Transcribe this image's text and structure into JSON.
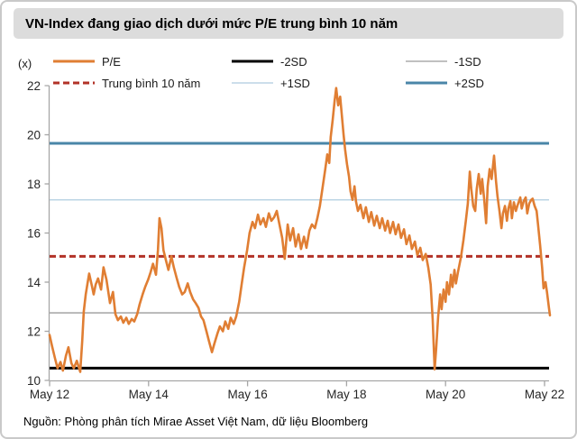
{
  "header": {
    "title": "VN-Index đang giao dịch dưới mức P/E trung bình 10 năm"
  },
  "legend": {
    "items": [
      {
        "key": "pe",
        "label": "P/E",
        "color": "#E07E33",
        "width": 3,
        "dashed": false,
        "col": 0,
        "row": 0
      },
      {
        "key": "minus-2sd",
        "label": "-2SD",
        "color": "#000000",
        "width": 3,
        "dashed": false,
        "col": 1,
        "row": 0
      },
      {
        "key": "minus-1sd",
        "label": "-1SD",
        "color": "#9B9B9B",
        "width": 1.3,
        "dashed": false,
        "col": 2,
        "row": 0
      },
      {
        "key": "mean-10y",
        "label": "Trung bình 10 năm",
        "color": "#B23227",
        "width": 3,
        "dashed": true,
        "col": 0,
        "row": 1
      },
      {
        "key": "plus-1sd",
        "label": "+1SD",
        "color": "#AECBDF",
        "width": 1.3,
        "dashed": false,
        "col": 1,
        "row": 1
      },
      {
        "key": "plus-2sd",
        "label": "+2SD",
        "color": "#4A86A8",
        "width": 3,
        "dashed": false,
        "col": 2,
        "row": 1
      }
    ]
  },
  "source": {
    "text": "Nguồn: Phòng phân tích Mirae Asset Việt Nam, dữ liệu Bloomberg"
  },
  "chart_data": {
    "type": "line",
    "title": "VN-Index đang giao dịch dưới mức P/E trung bình 10 năm",
    "unit_label": "(x)",
    "xlabel": "",
    "ylabel": "P/E (x)",
    "x_tick_labels": [
      "May 12",
      "May 14",
      "May 16",
      "May 18",
      "May 20",
      "May 22"
    ],
    "x_range_years_since_may_2012": [
      0,
      10.11
    ],
    "ylim": [
      10,
      22
    ],
    "y_ticks": [
      10,
      12,
      14,
      16,
      18,
      20,
      22
    ],
    "grid": false,
    "legend_position": "top",
    "axis_color": "#A6A6A6",
    "tick_label_color": "#262626",
    "reference_lines": [
      {
        "name": "-2SD",
        "value": 10.5,
        "color": "#000000",
        "width": 3,
        "dash": null
      },
      {
        "name": "-1SD",
        "value": 12.75,
        "color": "#9B9B9B",
        "width": 1.3,
        "dash": null
      },
      {
        "name": "Trung bình 10 năm",
        "value": 15.05,
        "color": "#B23227",
        "width": 3,
        "dash": "7,4"
      },
      {
        "name": "+1SD",
        "value": 17.35,
        "color": "#AECBDF",
        "width": 1.3,
        "dash": null
      },
      {
        "name": "+2SD",
        "value": 19.65,
        "color": "#4A86A8",
        "width": 3,
        "dash": null
      }
    ],
    "series": [
      {
        "name": "P/E",
        "color": "#E07E33",
        "width": 2.6,
        "points": [
          [
            0,
            11.85
          ],
          [
            0.05,
            11.4
          ],
          [
            0.11,
            10.9
          ],
          [
            0.16,
            10.5
          ],
          [
            0.22,
            10.75
          ],
          [
            0.27,
            10.4
          ],
          [
            0.33,
            11.0
          ],
          [
            0.38,
            11.35
          ],
          [
            0.44,
            10.7
          ],
          [
            0.49,
            10.5
          ],
          [
            0.55,
            10.8
          ],
          [
            0.62,
            10.35
          ],
          [
            0.66,
            11.6
          ],
          [
            0.69,
            12.8
          ],
          [
            0.73,
            13.5
          ],
          [
            0.77,
            14.0
          ],
          [
            0.8,
            14.35
          ],
          [
            0.86,
            13.8
          ],
          [
            0.89,
            13.5
          ],
          [
            0.93,
            13.9
          ],
          [
            0.98,
            14.15
          ],
          [
            1.04,
            13.7
          ],
          [
            1.09,
            14.6
          ],
          [
            1.15,
            14.1
          ],
          [
            1.22,
            13.15
          ],
          [
            1.28,
            13.6
          ],
          [
            1.33,
            12.7
          ],
          [
            1.38,
            12.45
          ],
          [
            1.44,
            12.6
          ],
          [
            1.49,
            12.35
          ],
          [
            1.55,
            12.55
          ],
          [
            1.6,
            12.3
          ],
          [
            1.66,
            12.5
          ],
          [
            1.71,
            12.4
          ],
          [
            1.77,
            12.7
          ],
          [
            1.82,
            13.1
          ],
          [
            1.88,
            13.5
          ],
          [
            1.93,
            13.8
          ],
          [
            1.99,
            14.1
          ],
          [
            2.04,
            14.4
          ],
          [
            2.09,
            14.75
          ],
          [
            2.15,
            14.3
          ],
          [
            2.19,
            15.3
          ],
          [
            2.22,
            16.6
          ],
          [
            2.26,
            16.2
          ],
          [
            2.3,
            15.3
          ],
          [
            2.35,
            14.9
          ],
          [
            2.4,
            14.5
          ],
          [
            2.46,
            15.05
          ],
          [
            2.51,
            14.6
          ],
          [
            2.57,
            14.15
          ],
          [
            2.62,
            13.8
          ],
          [
            2.68,
            13.5
          ],
          [
            2.73,
            13.6
          ],
          [
            2.79,
            13.95
          ],
          [
            2.84,
            13.6
          ],
          [
            2.9,
            13.3
          ],
          [
            2.95,
            13.15
          ],
          [
            3.01,
            12.95
          ],
          [
            3.06,
            12.6
          ],
          [
            3.11,
            12.45
          ],
          [
            3.17,
            12.0
          ],
          [
            3.22,
            11.6
          ],
          [
            3.28,
            11.15
          ],
          [
            3.33,
            11.5
          ],
          [
            3.39,
            11.9
          ],
          [
            3.44,
            12.2
          ],
          [
            3.5,
            12.0
          ],
          [
            3.55,
            12.4
          ],
          [
            3.61,
            12.1
          ],
          [
            3.66,
            12.55
          ],
          [
            3.72,
            12.3
          ],
          [
            3.77,
            12.6
          ],
          [
            3.83,
            13.2
          ],
          [
            3.88,
            13.9
          ],
          [
            3.93,
            14.6
          ],
          [
            3.99,
            15.3
          ],
          [
            4.04,
            16.0
          ],
          [
            4.1,
            16.45
          ],
          [
            4.15,
            16.2
          ],
          [
            4.21,
            16.75
          ],
          [
            4.26,
            16.35
          ],
          [
            4.32,
            16.6
          ],
          [
            4.37,
            16.25
          ],
          [
            4.43,
            16.8
          ],
          [
            4.48,
            16.5
          ],
          [
            4.54,
            16.65
          ],
          [
            4.59,
            16.9
          ],
          [
            4.64,
            16.4
          ],
          [
            4.7,
            15.8
          ],
          [
            4.75,
            14.95
          ],
          [
            4.81,
            16.35
          ],
          [
            4.86,
            15.7
          ],
          [
            4.92,
            16.2
          ],
          [
            4.97,
            15.45
          ],
          [
            5.03,
            15.95
          ],
          [
            5.08,
            15.35
          ],
          [
            5.14,
            15.85
          ],
          [
            5.19,
            15.4
          ],
          [
            5.25,
            16.1
          ],
          [
            5.3,
            16.35
          ],
          [
            5.36,
            16.2
          ],
          [
            5.41,
            16.6
          ],
          [
            5.46,
            17.1
          ],
          [
            5.52,
            17.9
          ],
          [
            5.57,
            18.6
          ],
          [
            5.61,
            19.2
          ],
          [
            5.65,
            18.85
          ],
          [
            5.68,
            19.9
          ],
          [
            5.72,
            20.6
          ],
          [
            5.76,
            21.4
          ],
          [
            5.79,
            21.9
          ],
          [
            5.83,
            21.2
          ],
          [
            5.87,
            21.55
          ],
          [
            5.9,
            20.9
          ],
          [
            5.94,
            20.0
          ],
          [
            5.97,
            19.4
          ],
          [
            6.01,
            18.8
          ],
          [
            6.05,
            18.3
          ],
          [
            6.08,
            17.7
          ],
          [
            6.12,
            17.35
          ],
          [
            6.16,
            17.9
          ],
          [
            6.19,
            17.3
          ],
          [
            6.23,
            16.9
          ],
          [
            6.28,
            17.15
          ],
          [
            6.34,
            16.6
          ],
          [
            6.39,
            17.05
          ],
          [
            6.45,
            16.45
          ],
          [
            6.5,
            16.85
          ],
          [
            6.56,
            16.3
          ],
          [
            6.61,
            16.7
          ],
          [
            6.67,
            16.2
          ],
          [
            6.72,
            16.6
          ],
          [
            6.78,
            16.1
          ],
          [
            6.83,
            16.5
          ],
          [
            6.88,
            16.0
          ],
          [
            6.94,
            16.45
          ],
          [
            6.99,
            15.95
          ],
          [
            7.05,
            16.35
          ],
          [
            7.1,
            15.8
          ],
          [
            7.16,
            16.15
          ],
          [
            7.21,
            15.55
          ],
          [
            7.27,
            15.9
          ],
          [
            7.32,
            15.35
          ],
          [
            7.38,
            15.65
          ],
          [
            7.43,
            15.1
          ],
          [
            7.49,
            15.4
          ],
          [
            7.54,
            14.9
          ],
          [
            7.6,
            15.15
          ],
          [
            7.65,
            14.6
          ],
          [
            7.7,
            13.9
          ],
          [
            7.74,
            12.5
          ],
          [
            7.78,
            10.45
          ],
          [
            7.81,
            11.3
          ],
          [
            7.85,
            12.6
          ],
          [
            7.89,
            13.5
          ],
          [
            7.92,
            12.9
          ],
          [
            7.96,
            13.7
          ],
          [
            8.0,
            13.2
          ],
          [
            8.03,
            14.0
          ],
          [
            8.07,
            13.5
          ],
          [
            8.11,
            14.3
          ],
          [
            8.14,
            13.8
          ],
          [
            8.18,
            14.5
          ],
          [
            8.21,
            13.95
          ],
          [
            8.25,
            14.4
          ],
          [
            8.31,
            15.0
          ],
          [
            8.36,
            15.7
          ],
          [
            8.41,
            16.5
          ],
          [
            8.45,
            17.2
          ],
          [
            8.49,
            18.5
          ],
          [
            8.52,
            17.8
          ],
          [
            8.56,
            17.1
          ],
          [
            8.6,
            16.9
          ],
          [
            8.63,
            17.8
          ],
          [
            8.67,
            18.4
          ],
          [
            8.71,
            17.6
          ],
          [
            8.74,
            18.2
          ],
          [
            8.78,
            17.4
          ],
          [
            8.82,
            16.4
          ],
          [
            8.85,
            17.9
          ],
          [
            8.89,
            18.6
          ],
          [
            8.93,
            18.2
          ],
          [
            8.98,
            19.15
          ],
          [
            9.02,
            18.1
          ],
          [
            9.05,
            17.5
          ],
          [
            9.09,
            16.9
          ],
          [
            9.13,
            16.2
          ],
          [
            9.16,
            16.8
          ],
          [
            9.2,
            17.1
          ],
          [
            9.24,
            16.5
          ],
          [
            9.27,
            17.0
          ],
          [
            9.31,
            17.3
          ],
          [
            9.34,
            16.6
          ],
          [
            9.38,
            17.25
          ],
          [
            9.42,
            16.9
          ],
          [
            9.45,
            17.1
          ],
          [
            9.51,
            17.45
          ],
          [
            9.54,
            17.0
          ],
          [
            9.58,
            17.3
          ],
          [
            9.62,
            17.45
          ],
          [
            9.65,
            16.8
          ],
          [
            9.69,
            17.2
          ],
          [
            9.73,
            17.35
          ],
          [
            9.76,
            17.4
          ],
          [
            9.8,
            17.1
          ],
          [
            9.84,
            16.9
          ],
          [
            9.87,
            16.3
          ],
          [
            9.91,
            15.5
          ],
          [
            9.95,
            14.6
          ],
          [
            9.98,
            13.75
          ],
          [
            10.02,
            14.0
          ],
          [
            10.05,
            13.6
          ],
          [
            10.09,
            12.95
          ],
          [
            10.11,
            12.65
          ]
        ]
      }
    ]
  }
}
